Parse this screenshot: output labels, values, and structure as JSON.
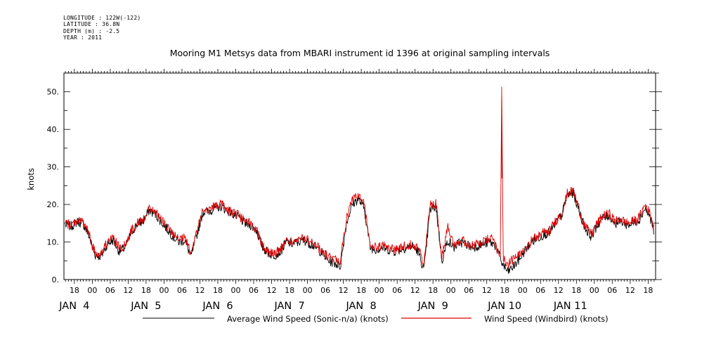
{
  "metadata": {
    "longitude": "LONGITUDE : 122W(-122)",
    "latitude": "LATITUDE : 36.8N",
    "depth": "DEPTH (m) : -2.5",
    "year": "YEAR : 2011"
  },
  "chart_data": {
    "type": "line",
    "title": "Mooring M1 Metsys data from MBARI instrument id 1396 at original sampling intervals",
    "ylabel": "knots",
    "xlabel": "",
    "ylim": [
      0,
      55
    ],
    "yticks": [
      0,
      10,
      20,
      30,
      40,
      50
    ],
    "ytick_labels": [
      "0.",
      "10.",
      "20.",
      "30.",
      "40.",
      "50."
    ],
    "xlim_hours": [
      -9.5,
      188.5
    ],
    "x_note": "hours relative to 2011-01-04 00:00",
    "hour_ticks": [
      {
        "h": -6,
        "label": "18"
      },
      {
        "h": 0,
        "label": "00"
      },
      {
        "h": 6,
        "label": "06"
      },
      {
        "h": 12,
        "label": "12"
      },
      {
        "h": 18,
        "label": "18"
      },
      {
        "h": 24,
        "label": "00"
      },
      {
        "h": 30,
        "label": "06"
      },
      {
        "h": 36,
        "label": "12"
      },
      {
        "h": 42,
        "label": "18"
      },
      {
        "h": 48,
        "label": "00"
      },
      {
        "h": 54,
        "label": "06"
      },
      {
        "h": 60,
        "label": "12"
      },
      {
        "h": 66,
        "label": "18"
      },
      {
        "h": 72,
        "label": "00"
      },
      {
        "h": 78,
        "label": "06"
      },
      {
        "h": 84,
        "label": "12"
      },
      {
        "h": 90,
        "label": "18"
      },
      {
        "h": 96,
        "label": "00"
      },
      {
        "h": 102,
        "label": "06"
      },
      {
        "h": 108,
        "label": "12"
      },
      {
        "h": 114,
        "label": "18"
      },
      {
        "h": 120,
        "label": "00"
      },
      {
        "h": 126,
        "label": "06"
      },
      {
        "h": 132,
        "label": "12"
      },
      {
        "h": 138,
        "label": "18"
      },
      {
        "h": 144,
        "label": "00"
      },
      {
        "h": 150,
        "label": "06"
      },
      {
        "h": 156,
        "label": "12"
      },
      {
        "h": 162,
        "label": "18"
      },
      {
        "h": 168,
        "label": "00"
      },
      {
        "h": 174,
        "label": "06"
      },
      {
        "h": 180,
        "label": "12"
      },
      {
        "h": 186,
        "label": "18"
      }
    ],
    "day_labels": [
      {
        "h": -6,
        "label": "JAN  4"
      },
      {
        "h": 18,
        "label": "JAN  5"
      },
      {
        "h": 42,
        "label": "JAN  6"
      },
      {
        "h": 66,
        "label": "JAN  7"
      },
      {
        "h": 90,
        "label": "JAN  8"
      },
      {
        "h": 114,
        "label": "JAN  9"
      },
      {
        "h": 138,
        "label": "JAN 10"
      },
      {
        "h": 160,
        "label": "JAN 11"
      }
    ],
    "legend": [
      {
        "name": "Average Wind Speed (Sonic-n/a) (knots)",
        "color": "#000000"
      },
      {
        "name": "Wind Speed (Windbird) (knots)",
        "color": "#e00000"
      }
    ],
    "series": [
      {
        "name": "Average Wind Speed (Sonic-n/a) (knots)",
        "color": "#000000",
        "x": [
          -9,
          -7,
          -5,
          -3,
          -1,
          0,
          1,
          3,
          5,
          7,
          9,
          11,
          13,
          15,
          17,
          19,
          21,
          23,
          25,
          27,
          29,
          31,
          33,
          35,
          37,
          39,
          41,
          43,
          45,
          47,
          49,
          51,
          53,
          55,
          57,
          59,
          61,
          63,
          65,
          67,
          69,
          71,
          73,
          75,
          77,
          79,
          81,
          83,
          85,
          87,
          89,
          91,
          93,
          95,
          97,
          99,
          101,
          103,
          105,
          107,
          109,
          111,
          113,
          115,
          117,
          119,
          121,
          123,
          125,
          127,
          129,
          131,
          133,
          135,
          137,
          139,
          141,
          143,
          145,
          147,
          149,
          151,
          153,
          155,
          157,
          159,
          161,
          163,
          165,
          167,
          169,
          171,
          173,
          175,
          177,
          179,
          181,
          183,
          185,
          187,
          188
        ],
        "y": [
          14.5,
          14.2,
          15.5,
          14.8,
          11.5,
          8.5,
          6.5,
          6.2,
          9.5,
          10.5,
          7.5,
          8.5,
          12.5,
          14.8,
          15.5,
          18.5,
          17.5,
          15.5,
          13.5,
          11.5,
          10.0,
          10.5,
          6.0,
          12.0,
          18.0,
          18.2,
          19.0,
          19.5,
          18.5,
          17.5,
          16.5,
          15.0,
          14.5,
          13.0,
          8.5,
          7.0,
          6.5,
          7.5,
          10.0,
          9.5,
          10.0,
          10.5,
          9.5,
          8.5,
          7.0,
          5.0,
          4.5,
          3.5,
          15.0,
          20.0,
          21.5,
          19.0,
          8.5,
          8.0,
          8.5,
          8.0,
          7.5,
          8.0,
          8.5,
          9.0,
          7.5,
          2.5,
          18.5,
          19.5,
          5.0,
          10.5,
          8.5,
          10.0,
          9.5,
          8.5,
          9.0,
          9.5,
          10.0,
          9.0,
          4.5,
          2.0,
          3.5,
          5.5,
          8.0,
          10.0,
          11.0,
          12.0,
          12.5,
          15.0,
          17.0,
          22.5,
          23.0,
          18.0,
          13.5,
          11.5,
          14.5,
          16.5,
          17.0,
          15.0,
          15.5,
          14.5,
          15.0,
          16.0,
          19.0,
          16.0,
          12.5
        ]
      },
      {
        "name": "Wind Speed (Windbird) (knots)",
        "color": "#e00000",
        "x": [
          -9,
          -7,
          -5,
          -3,
          -1,
          0,
          1,
          3,
          5,
          7,
          9,
          11,
          13,
          15,
          17,
          19,
          21,
          23,
          25,
          27,
          29,
          31,
          33,
          35,
          37,
          39,
          41,
          43,
          45,
          47,
          49,
          51,
          53,
          55,
          57,
          59,
          61,
          63,
          65,
          67,
          69,
          71,
          73,
          75,
          77,
          79,
          81,
          83,
          85,
          87,
          89,
          91,
          93,
          95,
          97,
          99,
          101,
          103,
          105,
          107,
          109,
          111,
          113,
          115,
          117,
          119,
          121,
          123,
          125,
          127,
          129,
          131,
          133,
          135,
          136.5,
          137,
          137.5,
          139,
          141,
          143,
          145,
          147,
          149,
          151,
          153,
          155,
          157,
          159,
          161,
          163,
          165,
          167,
          169,
          171,
          173,
          175,
          177,
          179,
          181,
          183,
          185,
          187,
          188
        ],
        "y": [
          15.0,
          14.5,
          16.0,
          15.2,
          12.0,
          9.0,
          7.0,
          7.0,
          10.0,
          11.0,
          8.5,
          9.0,
          13.0,
          15.0,
          16.0,
          19.0,
          18.0,
          16.0,
          14.0,
          12.0,
          10.5,
          11.0,
          7.0,
          13.0,
          18.5,
          18.8,
          19.5,
          20.0,
          19.0,
          18.0,
          17.0,
          15.5,
          15.0,
          13.5,
          9.0,
          7.5,
          7.0,
          8.0,
          10.5,
          10.0,
          10.5,
          11.0,
          10.0,
          9.0,
          7.5,
          6.0,
          5.5,
          5.0,
          16.0,
          21.0,
          22.5,
          20.0,
          9.0,
          8.5,
          9.0,
          8.5,
          8.0,
          8.5,
          9.0,
          9.5,
          8.5,
          4.0,
          20.0,
          20.5,
          6.0,
          14.5,
          9.5,
          10.5,
          10.0,
          9.0,
          9.5,
          10.0,
          11.0,
          10.0,
          5.0,
          51.3,
          6.0,
          4.0,
          5.5,
          6.5,
          8.5,
          10.5,
          11.5,
          12.5,
          13.0,
          15.5,
          17.5,
          23.0,
          23.5,
          18.5,
          14.0,
          12.0,
          15.0,
          17.0,
          17.5,
          15.5,
          16.0,
          15.0,
          15.5,
          16.5,
          20.0,
          17.0,
          13.0
        ]
      }
    ]
  }
}
